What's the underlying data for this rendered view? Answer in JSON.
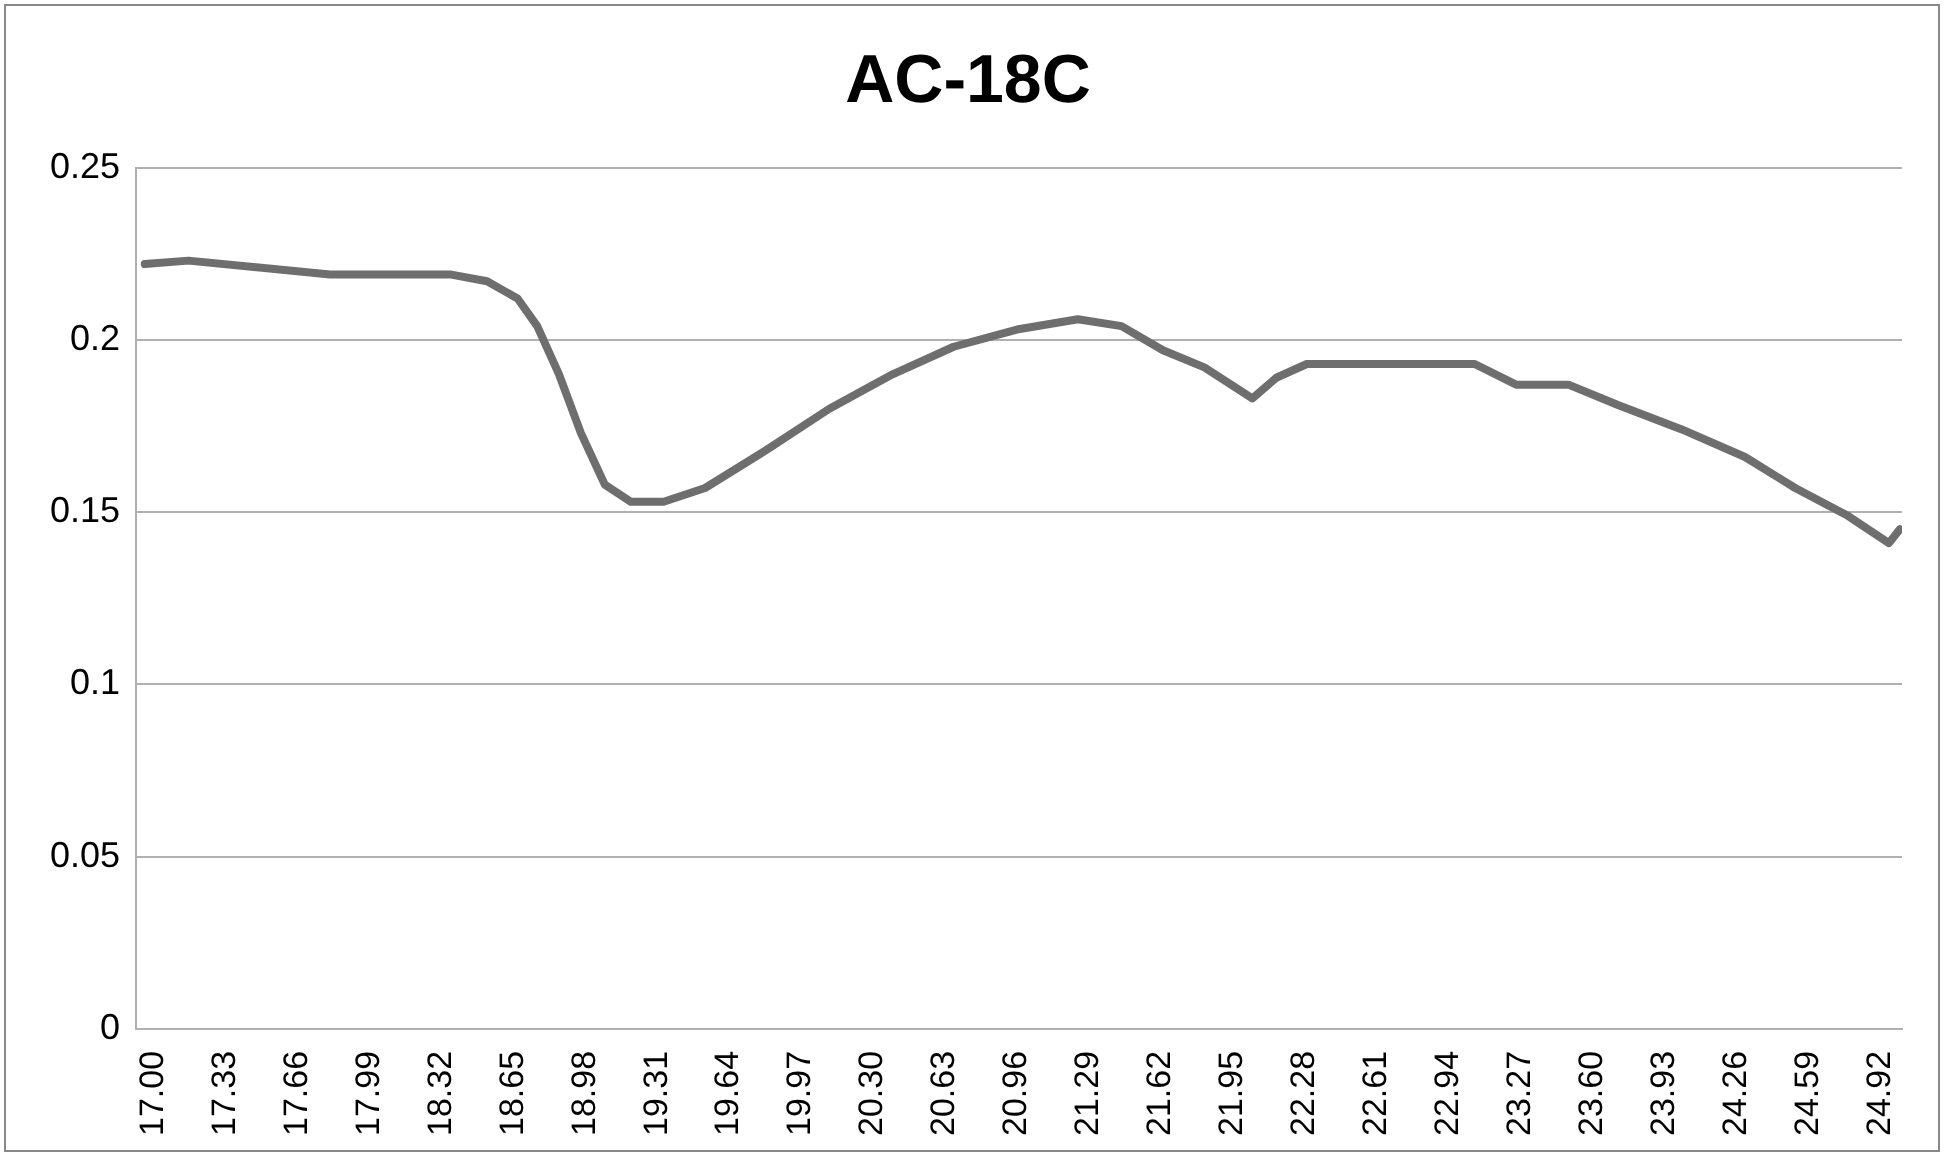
{
  "chart_data": {
    "type": "line",
    "title": "AC-18C",
    "xlim": [
      16.92,
      25.02
    ],
    "xticks": [
      {
        "value": 17.0,
        "label": "17.00"
      },
      {
        "value": 17.33,
        "label": "17.33"
      },
      {
        "value": 17.66,
        "label": "17.66"
      },
      {
        "value": 17.99,
        "label": "17.99"
      },
      {
        "value": 18.32,
        "label": "18.32"
      },
      {
        "value": 18.65,
        "label": "18.65"
      },
      {
        "value": 18.98,
        "label": "18.98"
      },
      {
        "value": 19.31,
        "label": "19.31"
      },
      {
        "value": 19.64,
        "label": "19.64"
      },
      {
        "value": 19.97,
        "label": "19.97"
      },
      {
        "value": 20.3,
        "label": "20.30"
      },
      {
        "value": 20.63,
        "label": "20.63"
      },
      {
        "value": 20.96,
        "label": "20.96"
      },
      {
        "value": 21.29,
        "label": "21.29"
      },
      {
        "value": 21.62,
        "label": "21.62"
      },
      {
        "value": 21.95,
        "label": "21.95"
      },
      {
        "value": 22.28,
        "label": "22.28"
      },
      {
        "value": 22.61,
        "label": "22.61"
      },
      {
        "value": 22.94,
        "label": "22.94"
      },
      {
        "value": 23.27,
        "label": "23.27"
      },
      {
        "value": 23.6,
        "label": "23.60"
      },
      {
        "value": 23.93,
        "label": "23.93"
      },
      {
        "value": 24.26,
        "label": "24.26"
      },
      {
        "value": 24.59,
        "label": "24.59"
      },
      {
        "value": 24.92,
        "label": "24.92"
      }
    ],
    "ylim": [
      0,
      0.25
    ],
    "yticks": [
      0,
      0.05,
      0.1,
      0.15,
      0.2,
      0.25
    ],
    "grid": "y",
    "legend": false,
    "marker": "none",
    "line_style": "solid",
    "series": [
      {
        "color": "#6e6e6e",
        "x": [
          16.96,
          17.16,
          17.81,
          18.36,
          18.53,
          18.67,
          18.76,
          18.86,
          18.96,
          19.07,
          19.19,
          19.34,
          19.53,
          19.81,
          20.1,
          20.39,
          20.67,
          20.96,
          21.24,
          21.44,
          21.63,
          21.82,
          22.04,
          22.15,
          22.29,
          22.68,
          23.06,
          23.25,
          23.49,
          23.72,
          24.01,
          24.3,
          24.53,
          24.77,
          24.96,
          25.01
        ],
        "values": [
          0.222,
          0.223,
          0.219,
          0.219,
          0.217,
          0.212,
          0.204,
          0.19,
          0.173,
          0.158,
          0.153,
          0.153,
          0.157,
          0.168,
          0.18,
          0.19,
          0.198,
          0.203,
          0.206,
          0.204,
          0.197,
          0.192,
          0.183,
          0.189,
          0.193,
          0.193,
          0.193,
          0.187,
          0.187,
          0.181,
          0.174,
          0.166,
          0.157,
          0.149,
          0.141,
          0.145
        ]
      }
    ]
  }
}
